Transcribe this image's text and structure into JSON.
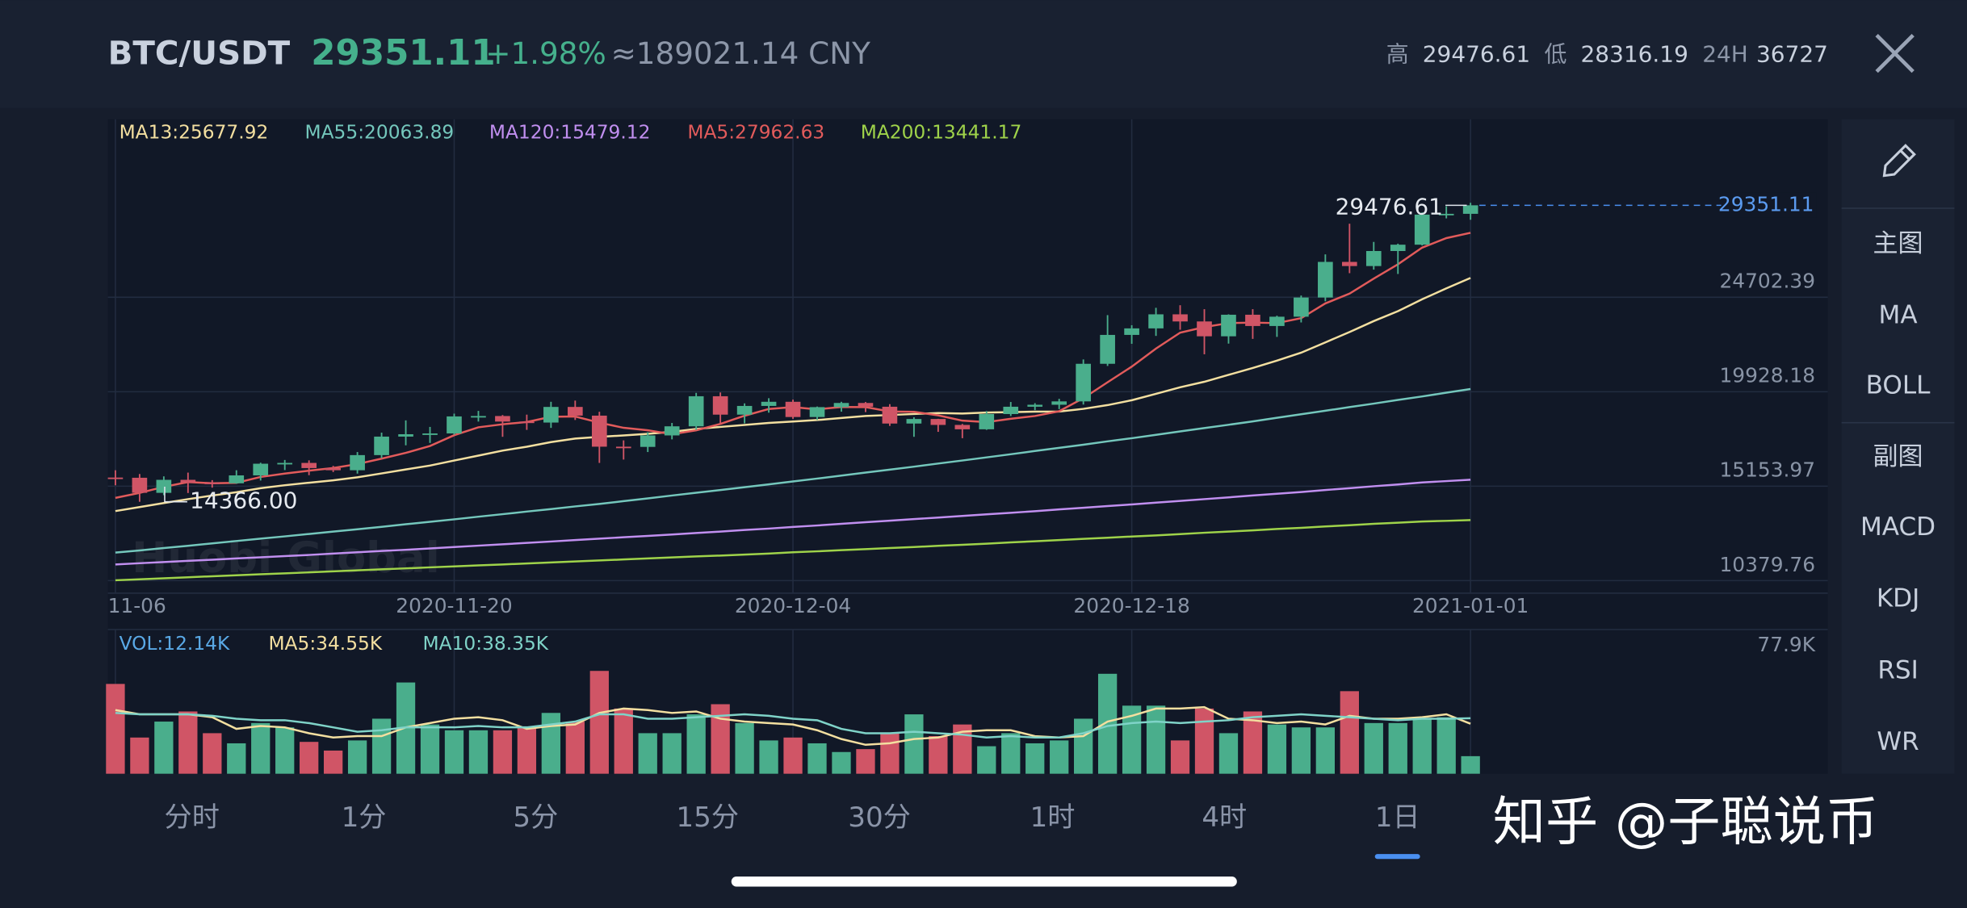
{
  "header": {
    "pair": "BTC/USDT",
    "price": "29351.11",
    "change": "+1.98%",
    "cny": "≈189021.14 CNY",
    "high_label": "高",
    "high": "29476.61",
    "low_label": "低",
    "low": "28316.19",
    "vol_label": "24H",
    "vol": "36727"
  },
  "sidebar": {
    "main": "主图",
    "main_items": [
      {
        "label": "MA",
        "active": true
      },
      {
        "label": "BOLL",
        "active": false
      }
    ],
    "sub": "副图",
    "sub_items": [
      {
        "label": "MACD",
        "active": true
      },
      {
        "label": "KDJ",
        "active": false
      },
      {
        "label": "RSI",
        "active": false
      },
      {
        "label": "WR",
        "active": false
      }
    ]
  },
  "tabs": [
    {
      "label": "分时",
      "active": false
    },
    {
      "label": "1分",
      "active": false
    },
    {
      "label": "5分",
      "active": false
    },
    {
      "label": "15分",
      "active": false
    },
    {
      "label": "30分",
      "active": false
    },
    {
      "label": "1时",
      "active": false
    },
    {
      "label": "4时",
      "active": false
    },
    {
      "label": "1日",
      "active": true
    }
  ],
  "watermark": "知乎 @子聪说币",
  "chart_data": [
    {
      "type": "candlestick",
      "watermark": "Huobi Global",
      "categories": [
        "11-06",
        null,
        null,
        null,
        null,
        null,
        null,
        null,
        null,
        null,
        null,
        null,
        null,
        null,
        "2020-11-20",
        null,
        null,
        null,
        null,
        null,
        null,
        null,
        null,
        null,
        null,
        null,
        null,
        null,
        "2020-12-04",
        null,
        null,
        null,
        null,
        null,
        null,
        null,
        null,
        null,
        null,
        null,
        null,
        null,
        "2020-12-18",
        null,
        null,
        null,
        null,
        null,
        null,
        null,
        null,
        null,
        null,
        null,
        null,
        null,
        "2021-01-01"
      ],
      "open": [
        15590,
        15580,
        14818,
        15475,
        15330,
        15300,
        15700,
        16290,
        16330,
        16070,
        15960,
        16725,
        17660,
        17780,
        17820,
        18680,
        18700,
        18420,
        18370,
        19160,
        18720,
        17150,
        17140,
        17720,
        18180,
        19700,
        18770,
        19210,
        19420,
        18650,
        19150,
        19360,
        19170,
        18320,
        18550,
        18250,
        18030,
        18800,
        19170,
        19270,
        19440,
        21340,
        22800,
        23130,
        23840,
        23480,
        22730,
        23820,
        23250,
        23720,
        24690,
        26490,
        26280,
        27040,
        27360,
        28880,
        28920
      ],
      "high": [
        15960,
        15770,
        15650,
        15840,
        15460,
        15960,
        16340,
        16480,
        16460,
        16180,
        16880,
        17860,
        18480,
        18150,
        18820,
        18960,
        18750,
        18770,
        19420,
        19480,
        18915,
        17470,
        17880,
        18350,
        19870,
        19890,
        19340,
        19600,
        19530,
        19180,
        19420,
        19410,
        19300,
        18640,
        18560,
        18300,
        18950,
        19410,
        19350,
        19570,
        21560,
        23800,
        23290,
        24170,
        24300,
        24100,
        23840,
        24100,
        23770,
        24790,
        26870,
        28420,
        27500,
        27410,
        28990,
        29300,
        29476.61
      ],
      "low": [
        15200,
        14366,
        14700,
        14810,
        15080,
        15280,
        15440,
        15970,
        15710,
        15870,
        15790,
        16570,
        17220,
        17340,
        17760,
        18420,
        17650,
        18000,
        18100,
        18500,
        16330,
        16500,
        16880,
        17520,
        18000,
        18330,
        18330,
        18870,
        18560,
        18500,
        18920,
        18900,
        18200,
        17650,
        17900,
        17580,
        18000,
        18700,
        19000,
        19050,
        19280,
        21230,
        22350,
        22750,
        23060,
        21820,
        22360,
        22600,
        22700,
        23430,
        24500,
        25920,
        26100,
        25880,
        27320,
        28690,
        28620
      ],
      "close": [
        15580,
        14818,
        15475,
        15330,
        15300,
        15700,
        16290,
        16330,
        16070,
        15960,
        16725,
        17660,
        17780,
        17820,
        18680,
        18700,
        18420,
        18370,
        19160,
        18720,
        17150,
        17140,
        17720,
        18180,
        19700,
        18770,
        19210,
        19420,
        18650,
        19150,
        19360,
        19170,
        18320,
        18550,
        18250,
        18030,
        18800,
        19170,
        19270,
        19440,
        21340,
        22800,
        23130,
        23840,
        23480,
        22730,
        23820,
        23250,
        23720,
        24690,
        26490,
        26280,
        27040,
        27360,
        28880,
        28920,
        29351.11
      ],
      "up_color": "#4aae8c",
      "down_color": "#d05566",
      "low_label": "14366.00",
      "ylim": [
        9746,
        33702
      ],
      "yticks": [
        10379.76,
        15153.97,
        19928.18,
        24702.39
      ],
      "grid": true,
      "series": [
        {
          "name": "MA13:25677.92",
          "color": "#f3dfa0",
          "values": [
            13900,
            14100,
            14300,
            14500,
            14680,
            14850,
            15050,
            15200,
            15330,
            15450,
            15600,
            15800,
            16000,
            16200,
            16450,
            16700,
            16950,
            17150,
            17380,
            17560,
            17650,
            17720,
            17800,
            17900,
            18050,
            18150,
            18250,
            18350,
            18420,
            18500,
            18600,
            18700,
            18750,
            18800,
            18850,
            18830,
            18880,
            18900,
            18920,
            18930,
            19060,
            19250,
            19500,
            19820,
            20150,
            20430,
            20780,
            21130,
            21500,
            21900,
            22420,
            22950,
            23500,
            24000,
            24600,
            25150,
            25677.92
          ]
        },
        {
          "name": "MA55:20063.89",
          "color": "#74c7bc",
          "values": [
            11800,
            11910,
            12030,
            12140,
            12260,
            12380,
            12500,
            12620,
            12740,
            12860,
            12980,
            13100,
            13230,
            13350,
            13480,
            13610,
            13740,
            13870,
            14000,
            14130,
            14260,
            14400,
            14540,
            14680,
            14820,
            14960,
            15100,
            15250,
            15390,
            15540,
            15690,
            15840,
            15990,
            16140,
            16300,
            16450,
            16610,
            16770,
            16930,
            17090,
            17250,
            17420,
            17580,
            17750,
            17920,
            18090,
            18260,
            18430,
            18610,
            18790,
            18970,
            19150,
            19330,
            19510,
            19690,
            19880,
            20063.89
          ]
        },
        {
          "name": "MA120:15479.12",
          "color": "#c18ff0",
          "values": [
            11200,
            11260,
            11320,
            11380,
            11440,
            11500,
            11560,
            11620,
            11680,
            11750,
            11810,
            11880,
            11940,
            12010,
            12080,
            12150,
            12220,
            12290,
            12360,
            12430,
            12500,
            12570,
            12640,
            12710,
            12790,
            12860,
            12940,
            13010,
            13090,
            13170,
            13250,
            13330,
            13410,
            13490,
            13570,
            13650,
            13730,
            13810,
            13890,
            13980,
            14060,
            14150,
            14230,
            14320,
            14410,
            14500,
            14590,
            14680,
            14770,
            14860,
            14960,
            15050,
            15150,
            15240,
            15340,
            15410,
            15479.12
          ]
        },
        {
          "name": "MA5:27962.63",
          "color": "#e25b5b",
          "values": [
            14560,
            14814,
            15119,
            15359,
            15301,
            15325,
            15619,
            15790,
            15938,
            16070,
            16275,
            16549,
            16839,
            17189,
            17733,
            18128,
            18280,
            18398,
            18666,
            18674,
            18364,
            18108,
            17978,
            17782,
            17978,
            18302,
            18716,
            19056,
            19150,
            19040,
            19158,
            19150,
            18930,
            18910,
            18730,
            18464,
            18390,
            18560,
            18704,
            18942,
            19604,
            20404,
            21196,
            22110,
            22918,
            23196,
            23400,
            23424,
            23400,
            23642,
            24394,
            24886,
            25644,
            26372,
            27210,
            27696,
            27962.63
          ]
        },
        {
          "name": "MA200:13441.17",
          "color": "#9fd34a",
          "values": [
            10400,
            10450,
            10500,
            10550,
            10600,
            10650,
            10700,
            10750,
            10800,
            10850,
            10900,
            10950,
            11000,
            11050,
            11100,
            11150,
            11200,
            11250,
            11300,
            11350,
            11400,
            11450,
            11500,
            11550,
            11600,
            11650,
            11700,
            11750,
            11810,
            11860,
            11920,
            11970,
            12030,
            12080,
            12140,
            12190,
            12250,
            12310,
            12370,
            12430,
            12490,
            12550,
            12610,
            12670,
            12730,
            12800,
            12860,
            12920,
            12990,
            13050,
            13120,
            13180,
            13250,
            13310,
            13370,
            13400,
            13441.17
          ]
        }
      ]
    },
    {
      "type": "bar",
      "legend": "VOL:12.14K",
      "legend_color": "#5aa9e6",
      "values": [
        62,
        25,
        36,
        43,
        28,
        21,
        35,
        32,
        22,
        16,
        23,
        38,
        63,
        34,
        30,
        30,
        30,
        32,
        42,
        36,
        71,
        45,
        28,
        28,
        41,
        48,
        35,
        23,
        25,
        21,
        15,
        17,
        28,
        41,
        26,
        34,
        19,
        28,
        21,
        23,
        38,
        69,
        47,
        47,
        23,
        45,
        28,
        43,
        34,
        32,
        32,
        57,
        35,
        35,
        38,
        39,
        12.14
      ],
      "ylim": [
        0,
        77.9
      ],
      "yticks": [
        {
          "value": 77.9,
          "label": "77.9K"
        }
      ],
      "series": [
        {
          "name": "MA5:34.55K",
          "color": "#f3dfa0",
          "values": [
            44,
            41,
            41,
            41,
            39,
            31,
            33,
            32,
            28,
            25,
            26,
            26,
            32,
            35,
            38,
            39,
            37,
            31,
            33,
            34,
            42,
            45,
            44,
            42,
            43,
            38,
            36,
            35,
            34,
            30,
            24,
            20,
            21,
            24,
            25,
            29,
            30,
            30,
            26,
            25,
            26,
            36,
            40,
            45,
            45,
            46,
            38,
            37,
            35,
            36,
            34,
            40,
            38,
            38,
            39,
            41,
            34.55
          ]
        },
        {
          "name": "MA10:38.35K",
          "color": "#7fd3c8",
          "values": [
            42,
            41,
            41,
            41,
            40,
            38,
            37,
            37,
            35,
            32,
            29,
            30,
            32,
            32,
            32,
            33,
            32,
            32,
            34,
            36,
            41,
            41,
            38,
            38,
            39,
            40,
            41,
            40,
            38,
            37,
            31,
            28,
            28,
            29,
            28,
            27,
            25,
            26,
            25,
            25,
            28,
            33,
            35,
            36,
            35,
            36,
            37,
            39,
            40,
            41,
            40,
            39,
            38,
            37,
            38,
            38,
            38.35
          ]
        }
      ]
    }
  ]
}
